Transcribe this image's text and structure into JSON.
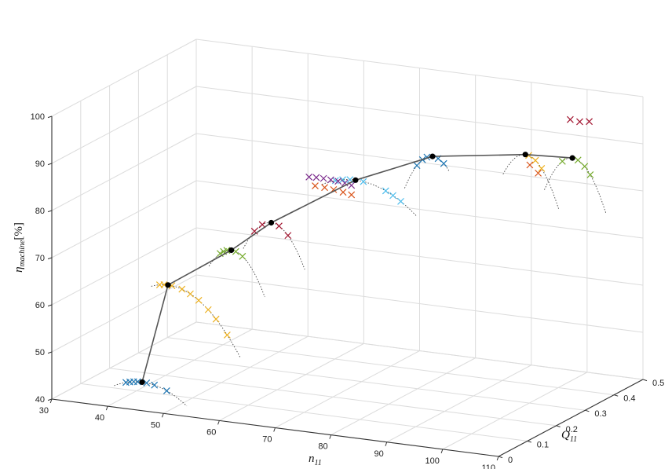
{
  "chart_data": {
    "type": "scatter",
    "title": "",
    "axes": {
      "x": {
        "label": "n",
        "label_sub": "11",
        "range": [
          30,
          110
        ],
        "ticks": [
          "30",
          "40",
          "50",
          "60",
          "70",
          "80",
          "90",
          "100",
          "110"
        ]
      },
      "y": {
        "label": "Q",
        "label_sub": "11",
        "range": [
          0,
          0.5
        ],
        "ticks": [
          "0",
          "0.1",
          "0.2",
          "0.3",
          "0.4",
          "0.5"
        ]
      },
      "z": {
        "label": "η",
        "label_sub": "machine",
        "label_unit": "[%]",
        "range": [
          40,
          100
        ],
        "ticks": [
          "40",
          "50",
          "60",
          "70",
          "80",
          "90",
          "100"
        ]
      }
    },
    "grid": true,
    "best_efficiency_line": {
      "points": [
        {
          "n11": 41.0,
          "Q11": 0.1,
          "eta": 42.0
        },
        {
          "n11": 44.6,
          "Q11": 0.12,
          "eta": 62.5
        },
        {
          "n11": 54.9,
          "Q11": 0.14,
          "eta": 70.8
        },
        {
          "n11": 60.5,
          "Q11": 0.17,
          "eta": 76.5
        },
        {
          "n11": 72.5,
          "Q11": 0.23,
          "eta": 85.4
        },
        {
          "n11": 83.7,
          "Q11": 0.28,
          "eta": 90.5
        },
        {
          "n11": 96.7,
          "Q11": 0.35,
          "eta": 90.6
        },
        {
          "n11": 101.5,
          "Q11": 0.42,
          "eta": 88.3
        }
      ]
    },
    "groups": [
      {
        "color": "#1f77b4",
        "marker_offsets": [
          -2.9,
          -2.2,
          -1.5,
          -0.8,
          0.8,
          2.2,
          4.4
        ],
        "curve": [
          -5,
          8
        ],
        "d2": -0.06
      },
      {
        "color": "#edb120",
        "marker_offsets": [
          -1.5,
          -0.7,
          0.7,
          2.5,
          4.0,
          5.5,
          7.2,
          8.6,
          10.6
        ],
        "curve": [
          -3,
          13
        ],
        "d2": -0.08
      },
      {
        "color": "#77ac30",
        "marker_offsets": [
          -2.0,
          -1.4,
          -0.8,
          0.8,
          2.0
        ],
        "curve": [
          -4,
          6
        ],
        "d2": -0.25
      },
      {
        "color": "#a2142f",
        "marker_offsets": [
          -3.0,
          -1.6,
          1.4,
          3.0
        ],
        "curve": [
          -5,
          6
        ],
        "d2": -0.25
      },
      {
        "color": "#4dbeee",
        "marker_offsets": [
          -3.6,
          -2.3,
          -1.0,
          1.4,
          5.4,
          6.7,
          8.1
        ],
        "curve": [
          -6,
          11
        ],
        "d2": -0.05
      },
      {
        "color": "#1f77b4",
        "marker_offsets": [
          -2.8,
          -1.8,
          -1.0,
          1.0,
          2.0
        ],
        "curve": [
          -5,
          3
        ],
        "d2": -0.3
      },
      {
        "color": "#edb120",
        "marker_offsets": [
          0.6,
          1.8,
          2.9
        ],
        "curve": [
          -4,
          6
        ],
        "d2": -0.3
      },
      {
        "color": "#77ac30",
        "marker_offsets": [
          -1.8,
          1.0,
          2.2,
          3.2
        ],
        "curve": [
          -5,
          6
        ],
        "d2": -0.3
      }
    ],
    "extra_series": [
      {
        "color": "#7e2f8e",
        "points": [
          {
            "n11": 65.2,
            "Q11": 0.21,
            "eta": 85.6
          },
          {
            "n11": 66.5,
            "Q11": 0.21,
            "eta": 85.7
          },
          {
            "n11": 67.8,
            "Q11": 0.21,
            "eta": 85.7
          },
          {
            "n11": 69.1,
            "Q11": 0.21,
            "eta": 85.6
          },
          {
            "n11": 70.4,
            "Q11": 0.21,
            "eta": 85.5
          },
          {
            "n11": 71.6,
            "Q11": 0.21,
            "eta": 85.3
          },
          {
            "n11": 72.8,
            "Q11": 0.21,
            "eta": 85.0
          }
        ]
      },
      {
        "color": "#d95319",
        "points": [
          {
            "n11": 66.3,
            "Q11": 0.21,
            "eta": 83.9
          },
          {
            "n11": 68.0,
            "Q11": 0.21,
            "eta": 83.8
          },
          {
            "n11": 69.6,
            "Q11": 0.21,
            "eta": 83.6
          },
          {
            "n11": 71.3,
            "Q11": 0.21,
            "eta": 83.3
          },
          {
            "n11": 72.8,
            "Q11": 0.21,
            "eta": 83.0
          }
        ]
      },
      {
        "color": "#a2142f",
        "points": [
          {
            "n11": 100.6,
            "Q11": 0.43,
            "eta": 96.0
          },
          {
            "n11": 102.3,
            "Q11": 0.43,
            "eta": 95.8
          },
          {
            "n11": 104.0,
            "Q11": 0.43,
            "eta": 96.1
          }
        ]
      },
      {
        "color": "#d95319",
        "points": [
          {
            "n11": 97.5,
            "Q11": 0.35,
            "eta": 88.5
          },
          {
            "n11": 99.0,
            "Q11": 0.35,
            "eta": 87.0
          }
        ]
      }
    ]
  }
}
